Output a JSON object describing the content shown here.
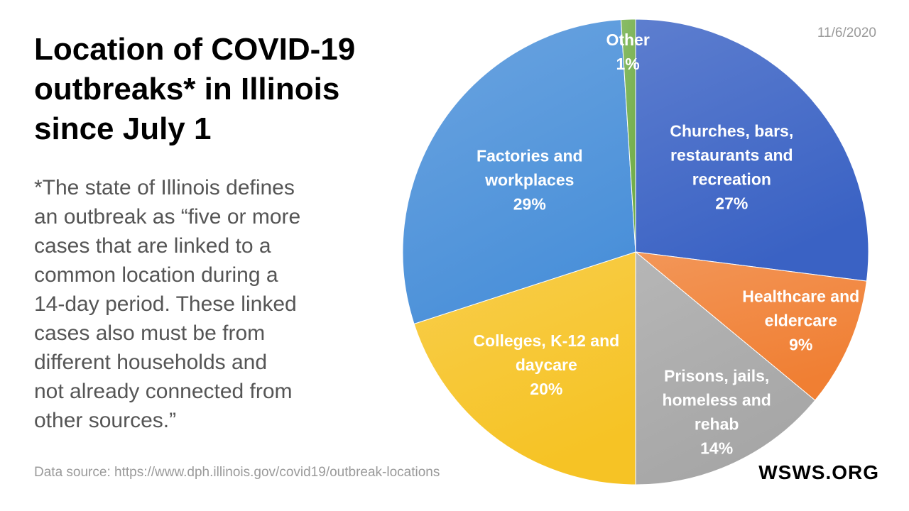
{
  "title": "Location of COVID-19\noutbreaks* in Illinois\nsince July 1",
  "footnote": "*The state of Illinois defines\nan outbreak as “five or more\ncases that are linked to a\ncommon location during a\n14-day period. These linked\ncases also must be from\ndifferent households and\nnot already connected from\nother sources.”",
  "date": "11/6/2020",
  "source": "Data source: https://www.dph.illinois.gov/covid19/outbreak-locations",
  "brand": "WSWS.ORG",
  "chart_data": {
    "type": "pie",
    "title": "Location of COVID-19 outbreaks* in Illinois since July 1",
    "start": "12 o'clock, clockwise",
    "slices": [
      {
        "label": "Churches, bars,\nrestaurants and\nrecreation",
        "value": 27,
        "value_label": "27%",
        "color": "#3a62c4"
      },
      {
        "label": "Healthcare and\neldercare",
        "value": 9,
        "value_label": "9%",
        "color": "#f07f33"
      },
      {
        "label": "Prisons, jails,\nhomeless and\nrehab",
        "value": 14,
        "value_label": "14%",
        "color": "#a6a6a6"
      },
      {
        "label": "Colleges, K-12 and\ndaycare",
        "value": 20,
        "value_label": "20%",
        "color": "#f6c325"
      },
      {
        "label": "Factories and\nworkplaces",
        "value": 29,
        "value_label": "29%",
        "color": "#4a90d9"
      },
      {
        "label": "Other",
        "value": 1,
        "value_label": "1%",
        "color": "#70ad47"
      }
    ]
  }
}
